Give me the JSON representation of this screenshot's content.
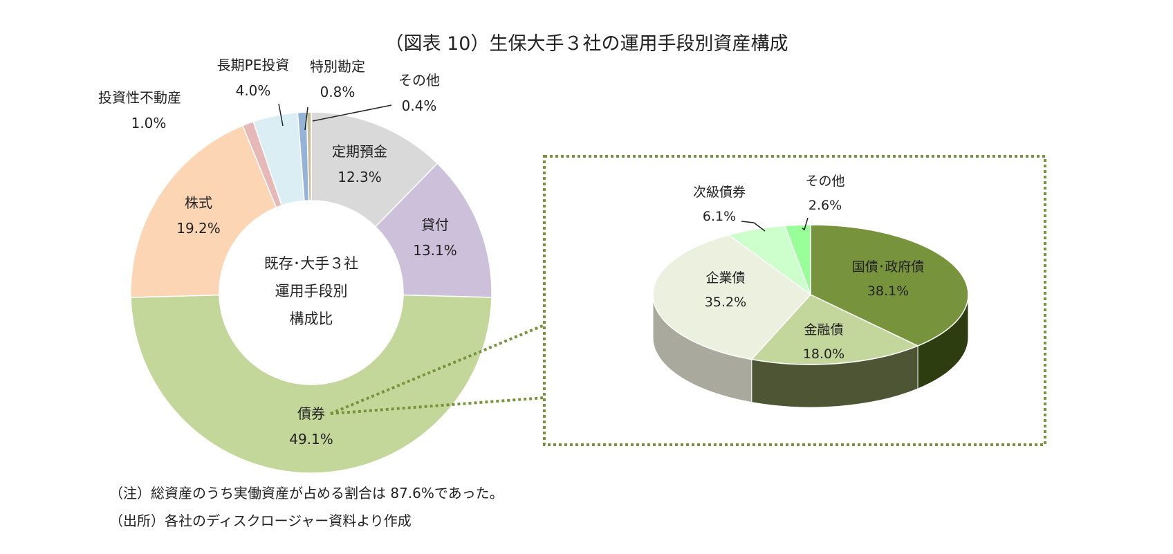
{
  "title": "（図表 10）生保大手３社の運用手段別資産構成",
  "notes": [
    "（注）総資産のうち実働資産が占める割合は 87.6%であった。",
    "（出所）各社のディスクロージャー資料より作成"
  ],
  "chart_data": [
    {
      "type": "pie",
      "variant": "donut",
      "center_label": [
        "既存･大手３社",
        "運用手段別",
        "構成比"
      ],
      "unit": "%",
      "slices": [
        {
          "label": "定期預金",
          "value": 12.3,
          "value_label": "12.3%",
          "color": "#d9d9d9"
        },
        {
          "label": "貸付",
          "value": 13.1,
          "value_label": "13.1%",
          "color": "#ccc0da"
        },
        {
          "label": "債券",
          "value": 49.1,
          "value_label": "49.1%",
          "color": "#c4d79b"
        },
        {
          "label": "株式",
          "value": 19.2,
          "value_label": "19.2%",
          "color": "#fcd5b4"
        },
        {
          "label": "投資性不動産",
          "value": 1.0,
          "value_label": "1.0%",
          "color": "#e6b9b8"
        },
        {
          "label": "長期PE投資",
          "value": 4.0,
          "value_label": "4.0%",
          "color": "#dbeef3"
        },
        {
          "label": "特別勘定",
          "value": 0.8,
          "value_label": "0.8%",
          "color": "#95b3d7"
        },
        {
          "label": "その他",
          "value": 0.4,
          "value_label": "0.4%",
          "color": "#c4bd97"
        }
      ]
    },
    {
      "type": "pie",
      "variant": "3d",
      "breakdown_of": "債券",
      "unit": "%",
      "slices": [
        {
          "label": "国債･政府債",
          "value": 38.1,
          "value_label": "38.1%",
          "color": "#77933c"
        },
        {
          "label": "金融債",
          "value": 18.0,
          "value_label": "18.0%",
          "color": "#c3d69b"
        },
        {
          "label": "企業債",
          "value": 35.2,
          "value_label": "35.2%",
          "color": "#ebf1de"
        },
        {
          "label": "次級債券",
          "value": 6.1,
          "value_label": "6.1%",
          "color": "#ccffcc"
        },
        {
          "label": "その他",
          "value": 2.6,
          "value_label": "2.6%",
          "color": "#99ff99"
        }
      ]
    }
  ]
}
